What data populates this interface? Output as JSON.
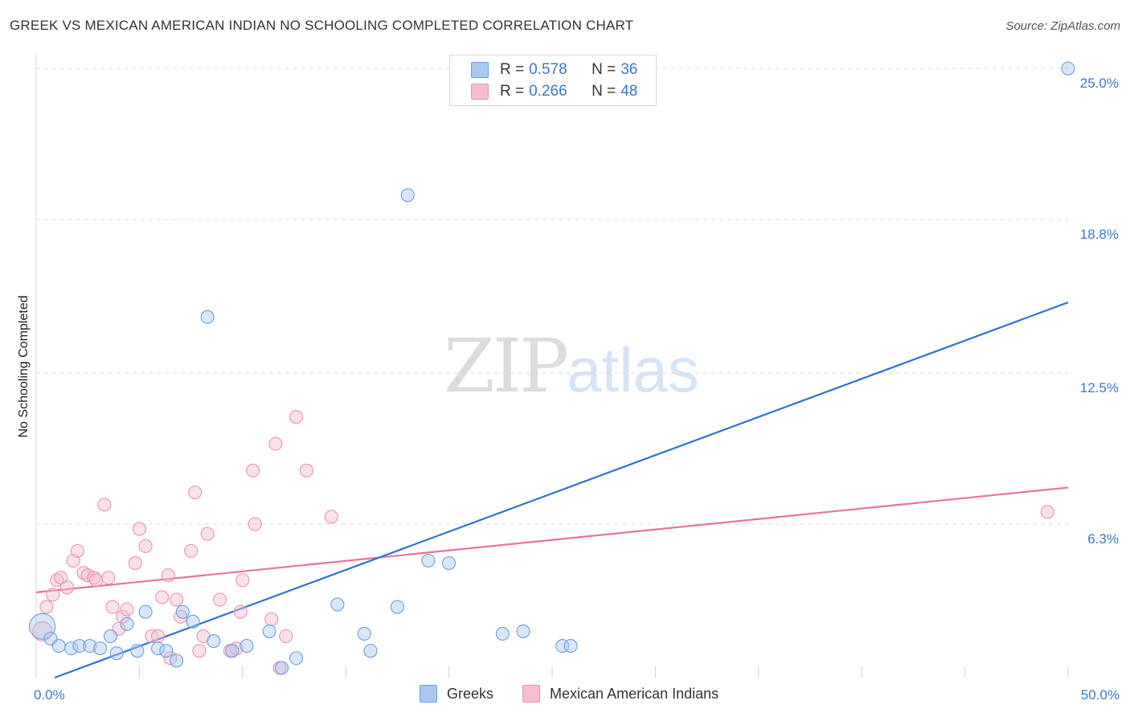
{
  "header": {
    "title": "GREEK VS MEXICAN AMERICAN INDIAN NO SCHOOLING COMPLETED CORRELATION CHART",
    "source": "Source: ZipAtlas.com"
  },
  "watermark": {
    "zip": "ZIP",
    "atlas": "atlas"
  },
  "legend": {
    "rows": [
      {
        "r_label": "R = ",
        "r_value": "0.578",
        "n_label": "N = ",
        "n_value": "36"
      },
      {
        "r_label": "R = ",
        "r_value": "0.266",
        "n_label": "N = ",
        "n_value": "48"
      }
    ]
  },
  "bottom_legend": {
    "greeks": "Greeks",
    "mexican": "Mexican American Indians"
  },
  "colors": {
    "greeks_fill": "#a9c8f0",
    "greeks_stroke": "#6a9fdc",
    "greeks_line": "#2f73d1",
    "mex_fill": "#f7bcd0",
    "mex_stroke": "#e991b2",
    "mex_line": "#e8739b",
    "grid": "#d9d9d9",
    "tick_text": "#3a78c9"
  },
  "chart_data": {
    "type": "scatter",
    "title": "GREEK VS MEXICAN AMERICAN INDIAN NO SCHOOLING COMPLETED CORRELATION CHART",
    "xlabel": "",
    "ylabel": "No Schooling Completed",
    "xlim": [
      0,
      50
    ],
    "ylim": [
      0,
      25.5
    ],
    "x_tick_labels": [
      "0.0%",
      "50.0%"
    ],
    "y_ticks": [
      6.3,
      12.5,
      18.8,
      25.0
    ],
    "y_tick_labels": [
      "6.3%",
      "12.5%",
      "18.8%",
      "25.0%"
    ],
    "grid": true,
    "series": [
      {
        "name": "Greeks",
        "r": 0.578,
        "n": 36,
        "trend": {
          "x": [
            0.9,
            50
          ],
          "y": [
            0.0,
            15.4
          ]
        },
        "points": [
          [
            0.3,
            2.1
          ],
          [
            0.7,
            1.6
          ],
          [
            1.1,
            1.3
          ],
          [
            1.7,
            1.2
          ],
          [
            2.1,
            1.3
          ],
          [
            2.6,
            1.3
          ],
          [
            3.1,
            1.2
          ],
          [
            3.6,
            1.7
          ],
          [
            3.9,
            1.0
          ],
          [
            4.4,
            2.2
          ],
          [
            4.9,
            1.1
          ],
          [
            5.3,
            2.7
          ],
          [
            5.9,
            1.2
          ],
          [
            6.3,
            1.1
          ],
          [
            6.8,
            0.7
          ],
          [
            7.1,
            2.7
          ],
          [
            7.6,
            2.3
          ],
          [
            8.3,
            14.8
          ],
          [
            8.6,
            1.5
          ],
          [
            9.5,
            1.1
          ],
          [
            10.2,
            1.3
          ],
          [
            11.3,
            1.9
          ],
          [
            11.9,
            0.4
          ],
          [
            12.6,
            0.8
          ],
          [
            14.6,
            3.0
          ],
          [
            15.9,
            1.8
          ],
          [
            16.2,
            1.1
          ],
          [
            17.5,
            2.9
          ],
          [
            18.0,
            19.8
          ],
          [
            19.0,
            4.8
          ],
          [
            20.0,
            4.7
          ],
          [
            22.6,
            1.8
          ],
          [
            23.6,
            1.9
          ],
          [
            25.5,
            1.3
          ],
          [
            25.9,
            1.3
          ],
          [
            50.0,
            25.0
          ]
        ]
      },
      {
        "name": "Mexican American Indians",
        "r": 0.266,
        "n": 48,
        "trend": {
          "x": [
            0,
            50
          ],
          "y": [
            3.5,
            7.8
          ]
        },
        "points": [
          [
            0.3,
            1.9
          ],
          [
            0.5,
            2.9
          ],
          [
            0.8,
            3.4
          ],
          [
            1.0,
            4.0
          ],
          [
            1.2,
            4.1
          ],
          [
            1.5,
            3.7
          ],
          [
            1.8,
            4.8
          ],
          [
            2.0,
            5.2
          ],
          [
            2.3,
            4.3
          ],
          [
            2.5,
            4.2
          ],
          [
            2.8,
            4.1
          ],
          [
            2.9,
            4.0
          ],
          [
            3.3,
            7.1
          ],
          [
            3.5,
            4.1
          ],
          [
            3.7,
            2.9
          ],
          [
            4.0,
            2.0
          ],
          [
            4.2,
            2.5
          ],
          [
            4.4,
            2.8
          ],
          [
            4.8,
            4.7
          ],
          [
            5.0,
            6.1
          ],
          [
            5.3,
            5.4
          ],
          [
            5.6,
            1.7
          ],
          [
            5.9,
            1.7
          ],
          [
            6.1,
            3.3
          ],
          [
            6.4,
            4.2
          ],
          [
            6.5,
            0.8
          ],
          [
            6.8,
            3.2
          ],
          [
            7.0,
            2.5
          ],
          [
            7.5,
            5.2
          ],
          [
            7.7,
            7.6
          ],
          [
            7.9,
            1.1
          ],
          [
            8.1,
            1.7
          ],
          [
            8.3,
            5.9
          ],
          [
            8.9,
            3.2
          ],
          [
            9.4,
            1.1
          ],
          [
            9.7,
            1.2
          ],
          [
            9.9,
            2.7
          ],
          [
            10.0,
            4.0
          ],
          [
            10.5,
            8.5
          ],
          [
            10.6,
            6.3
          ],
          [
            11.4,
            2.4
          ],
          [
            11.6,
            9.6
          ],
          [
            11.8,
            0.4
          ],
          [
            12.1,
            1.7
          ],
          [
            12.6,
            10.7
          ],
          [
            13.1,
            8.5
          ],
          [
            14.3,
            6.6
          ],
          [
            49.0,
            6.8
          ]
        ]
      }
    ]
  }
}
